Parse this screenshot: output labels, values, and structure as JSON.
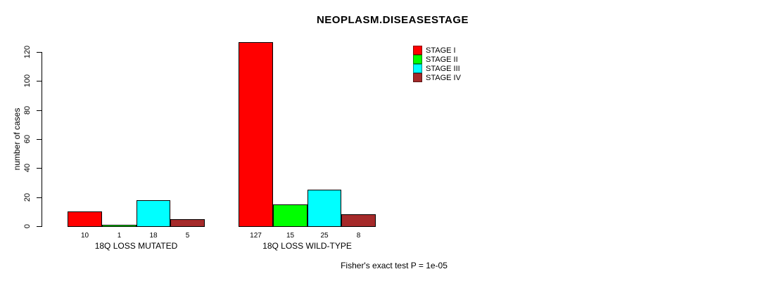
{
  "chart_data": {
    "type": "bar",
    "title": "NEOPLASM.DISEASESTAGE",
    "ylabel": "number of cases",
    "ylim": [
      0,
      120
    ],
    "yticks": [
      0,
      20,
      40,
      60,
      80,
      100,
      120
    ],
    "grid": false,
    "legend_position": "top-right",
    "series": [
      {
        "name": "STAGE I",
        "color": "#FF0000"
      },
      {
        "name": "STAGE II",
        "color": "#00FF00"
      },
      {
        "name": "STAGE III",
        "color": "#00FFFF"
      },
      {
        "name": "STAGE IV",
        "color": "#A52A2A"
      }
    ],
    "groups": [
      {
        "label": "18Q LOSS MUTATED",
        "values": [
          10,
          1,
          18,
          5
        ]
      },
      {
        "label": "18Q LOSS WILD-TYPE",
        "values": [
          127,
          15,
          25,
          8
        ]
      }
    ],
    "annotation": "Fisher's exact test P = 1e-05",
    "bar_border_color": "#000000",
    "axis_color": "#000000",
    "background_color": "#FFFFFF"
  }
}
